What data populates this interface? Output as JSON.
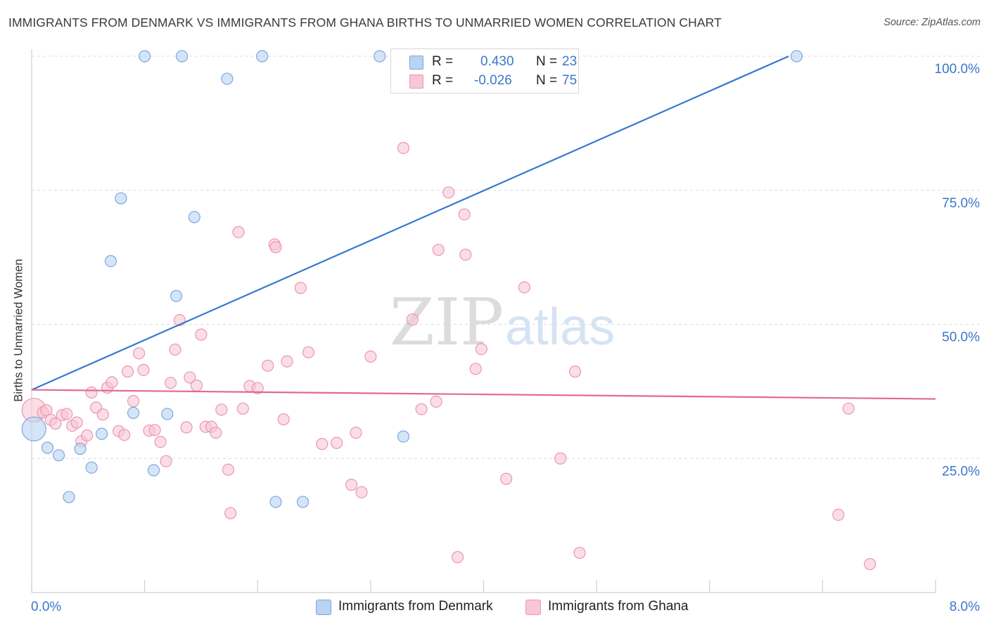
{
  "title": "IMMIGRANTS FROM DENMARK VS IMMIGRANTS FROM GHANA BIRTHS TO UNMARRIED WOMEN CORRELATION CHART",
  "source": "Source: ZipAtlas.com",
  "watermark": {
    "zip": "ZIP",
    "atlas": "atlas"
  },
  "legend": {
    "denmark": {
      "r_label": "R =",
      "r_value": "0.430",
      "n_label": "N =",
      "n_value": "23"
    },
    "ghana": {
      "r_label": "R =",
      "r_value": "-0.026",
      "n_label": "N =",
      "n_value": "75"
    }
  },
  "colors": {
    "denmark_fill": "#b9d3f3",
    "denmark_stroke": "#7ea7de",
    "denmark_line": "#3578d0",
    "ghana_fill": "#f8c6d4",
    "ghana_stroke": "#eb97b1",
    "ghana_line": "#e46792",
    "axis_label": "#3a78c9",
    "grid": "#dcdcdc"
  },
  "chart_data": {
    "type": "scatter",
    "title": "IMMIGRANTS FROM DENMARK VS IMMIGRANTS FROM GHANA BIRTHS TO UNMARRIED WOMEN CORRELATION CHART",
    "xlabel": "",
    "ylabel": "Births to Unmarried Women",
    "xlim": [
      0,
      8
    ],
    "ylim": [
      0,
      104
    ],
    "x_tick_labels": [
      "0.0%",
      "8.0%"
    ],
    "y_ticks": [
      25,
      50,
      75,
      100
    ],
    "y_tick_labels": [
      "25.0%",
      "50.0%",
      "75.0%",
      "100.0%"
    ],
    "grid": true,
    "legend_position": "top-center",
    "series": [
      {
        "name": "Immigrants from Denmark",
        "r": 0.43,
        "n": 23,
        "trend": {
          "x": [
            0,
            6.7
          ],
          "y": [
            37.8,
            100
          ]
        },
        "points": [
          {
            "x": 0.02,
            "y": 30.5,
            "big": true
          },
          {
            "x": 0.14,
            "y": 27
          },
          {
            "x": 0.24,
            "y": 25.6
          },
          {
            "x": 0.33,
            "y": 17.8
          },
          {
            "x": 0.43,
            "y": 26.8
          },
          {
            "x": 0.53,
            "y": 23.3
          },
          {
            "x": 0.62,
            "y": 29.6
          },
          {
            "x": 0.7,
            "y": 61.8
          },
          {
            "x": 0.79,
            "y": 73.5
          },
          {
            "x": 0.9,
            "y": 33.5
          },
          {
            "x": 1.0,
            "y": 100
          },
          {
            "x": 1.08,
            "y": 22.8
          },
          {
            "x": 1.2,
            "y": 33.3
          },
          {
            "x": 1.28,
            "y": 55.3
          },
          {
            "x": 1.33,
            "y": 100
          },
          {
            "x": 1.44,
            "y": 70
          },
          {
            "x": 1.73,
            "y": 95.8
          },
          {
            "x": 2.04,
            "y": 100
          },
          {
            "x": 2.16,
            "y": 16.9
          },
          {
            "x": 2.4,
            "y": 16.9
          },
          {
            "x": 3.08,
            "y": 100
          },
          {
            "x": 3.29,
            "y": 29.1
          },
          {
            "x": 6.77,
            "y": 100
          }
        ]
      },
      {
        "name": "Immigrants from Ghana",
        "r": -0.026,
        "n": 75,
        "trend": {
          "x": [
            0,
            8
          ],
          "y": [
            37.8,
            36.1
          ]
        },
        "points": [
          {
            "x": 0.02,
            "y": 34,
            "big": true
          },
          {
            "x": 0.1,
            "y": 33.6
          },
          {
            "x": 0.13,
            "y": 34
          },
          {
            "x": 0.17,
            "y": 32.2
          },
          {
            "x": 0.21,
            "y": 31.5
          },
          {
            "x": 0.27,
            "y": 33.1
          },
          {
            "x": 0.31,
            "y": 33.3
          },
          {
            "x": 0.36,
            "y": 31.1
          },
          {
            "x": 0.4,
            "y": 31.7
          },
          {
            "x": 0.44,
            "y": 28.2
          },
          {
            "x": 0.49,
            "y": 29.3
          },
          {
            "x": 0.53,
            "y": 37.3
          },
          {
            "x": 0.57,
            "y": 34.5
          },
          {
            "x": 0.63,
            "y": 33.2
          },
          {
            "x": 0.67,
            "y": 38.2
          },
          {
            "x": 0.71,
            "y": 39.2
          },
          {
            "x": 0.77,
            "y": 30.1
          },
          {
            "x": 0.82,
            "y": 29.4
          },
          {
            "x": 0.85,
            "y": 41.2
          },
          {
            "x": 0.9,
            "y": 35.7
          },
          {
            "x": 0.95,
            "y": 44.6
          },
          {
            "x": 0.99,
            "y": 41.5
          },
          {
            "x": 1.04,
            "y": 30.2
          },
          {
            "x": 1.09,
            "y": 30.3
          },
          {
            "x": 1.14,
            "y": 28.1
          },
          {
            "x": 1.19,
            "y": 24.5
          },
          {
            "x": 1.23,
            "y": 39.1
          },
          {
            "x": 1.27,
            "y": 45.3
          },
          {
            "x": 1.31,
            "y": 50.8
          },
          {
            "x": 1.37,
            "y": 30.8
          },
          {
            "x": 1.4,
            "y": 40.1
          },
          {
            "x": 1.46,
            "y": 38.6
          },
          {
            "x": 1.5,
            "y": 48.1
          },
          {
            "x": 1.54,
            "y": 30.9
          },
          {
            "x": 1.59,
            "y": 30.9
          },
          {
            "x": 1.63,
            "y": 29.8
          },
          {
            "x": 1.68,
            "y": 34.1
          },
          {
            "x": 1.74,
            "y": 22.9
          },
          {
            "x": 1.76,
            "y": 14.8
          },
          {
            "x": 1.83,
            "y": 67.2
          },
          {
            "x": 1.87,
            "y": 34.3
          },
          {
            "x": 1.93,
            "y": 38.5
          },
          {
            "x": 2.0,
            "y": 38.1
          },
          {
            "x": 2.09,
            "y": 42.3
          },
          {
            "x": 2.15,
            "y": 64.9
          },
          {
            "x": 2.16,
            "y": 64.4
          },
          {
            "x": 2.23,
            "y": 32.3
          },
          {
            "x": 2.26,
            "y": 43.1
          },
          {
            "x": 2.38,
            "y": 56.8
          },
          {
            "x": 2.45,
            "y": 44.8
          },
          {
            "x": 2.57,
            "y": 27.7
          },
          {
            "x": 2.7,
            "y": 27.9
          },
          {
            "x": 2.83,
            "y": 20.1
          },
          {
            "x": 2.87,
            "y": 29.8
          },
          {
            "x": 2.92,
            "y": 18.7
          },
          {
            "x": 3.0,
            "y": 44
          },
          {
            "x": 3.29,
            "y": 82.9
          },
          {
            "x": 3.37,
            "y": 50.9
          },
          {
            "x": 3.45,
            "y": 34.2
          },
          {
            "x": 3.58,
            "y": 35.6
          },
          {
            "x": 3.6,
            "y": 63.9
          },
          {
            "x": 3.69,
            "y": 74.6
          },
          {
            "x": 3.77,
            "y": 6.6
          },
          {
            "x": 3.83,
            "y": 70.5
          },
          {
            "x": 3.84,
            "y": 63
          },
          {
            "x": 3.93,
            "y": 41.7
          },
          {
            "x": 3.98,
            "y": 45.4
          },
          {
            "x": 4.2,
            "y": 21.2
          },
          {
            "x": 4.36,
            "y": 56.9
          },
          {
            "x": 4.68,
            "y": 25
          },
          {
            "x": 4.81,
            "y": 41.2
          },
          {
            "x": 4.85,
            "y": 7.4
          },
          {
            "x": 7.14,
            "y": 14.5
          },
          {
            "x": 7.23,
            "y": 34.3
          },
          {
            "x": 7.42,
            "y": 5.3
          }
        ]
      }
    ]
  }
}
